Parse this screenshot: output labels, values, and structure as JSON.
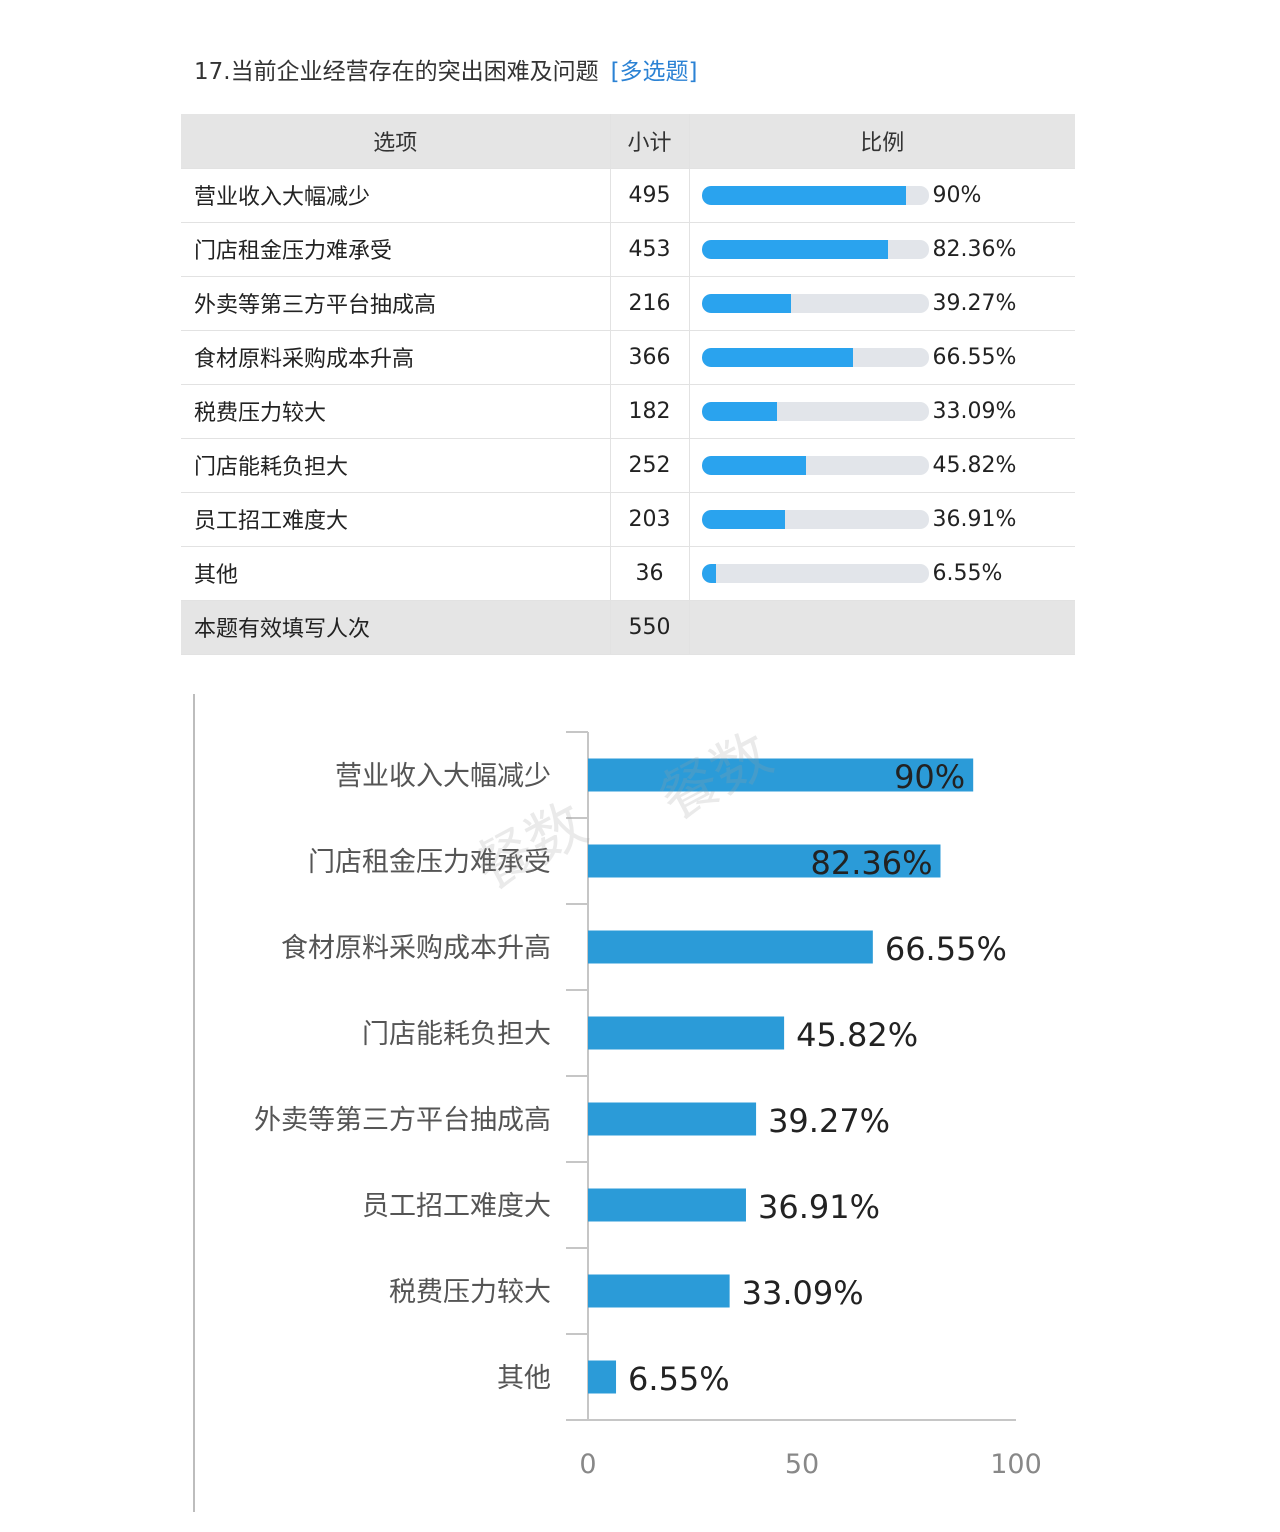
{
  "question": {
    "title": "17.当前企业经营存在的突出困难及问题",
    "tag": "[多选题]"
  },
  "table": {
    "headers": [
      "选项",
      "小计",
      "比例"
    ],
    "rows": [
      {
        "option": "营业收入大幅减少",
        "count": "495",
        "ratio": 90,
        "ratio_label": "90%"
      },
      {
        "option": "门店租金压力难承受",
        "count": "453",
        "ratio": 82.36,
        "ratio_label": "82.36%"
      },
      {
        "option": "外卖等第三方平台抽成高",
        "count": "216",
        "ratio": 39.27,
        "ratio_label": "39.27%"
      },
      {
        "option": "食材原料采购成本升高",
        "count": "366",
        "ratio": 66.55,
        "ratio_label": "66.55%"
      },
      {
        "option": "税费压力较大",
        "count": "182",
        "ratio": 33.09,
        "ratio_label": "33.09%"
      },
      {
        "option": "门店能耗负担大",
        "count": "252",
        "ratio": 45.82,
        "ratio_label": "45.82%"
      },
      {
        "option": "员工招工难度大",
        "count": "203",
        "ratio": 36.91,
        "ratio_label": "36.91%"
      },
      {
        "option": "其他",
        "count": "36",
        "ratio": 6.55,
        "ratio_label": "6.55%"
      }
    ],
    "total": {
      "label": "本题有效填写人次",
      "count": "550"
    }
  },
  "colors": {
    "table_bar": "#2aa3ee",
    "table_track": "#e2e5ea",
    "chart_bar": "#2b9bd8",
    "tag": "#2b82d4",
    "header_bg": "#e5e5e5"
  },
  "watermark": [
    "餐数",
    "餐数"
  ],
  "chart_data": {
    "type": "bar",
    "orientation": "horizontal",
    "categories": [
      "营业收入大幅减少",
      "门店租金压力难承受",
      "食材原料采购成本升高",
      "门店能耗负担大",
      "外卖等第三方平台抽成高",
      "员工招工难度大",
      "税费压力较大",
      "其他"
    ],
    "values": [
      90,
      82.36,
      66.55,
      45.82,
      39.27,
      36.91,
      33.09,
      6.55
    ],
    "labels": [
      "90%",
      "82.36%",
      "66.55%",
      "45.82%",
      "39.27%",
      "36.91%",
      "33.09%",
      "6.55%"
    ],
    "xlim": [
      0,
      100
    ],
    "xticks": [
      "0",
      "50",
      "100"
    ],
    "title": "",
    "xlabel": "",
    "ylabel": "",
    "grid": false,
    "legend": "none"
  }
}
